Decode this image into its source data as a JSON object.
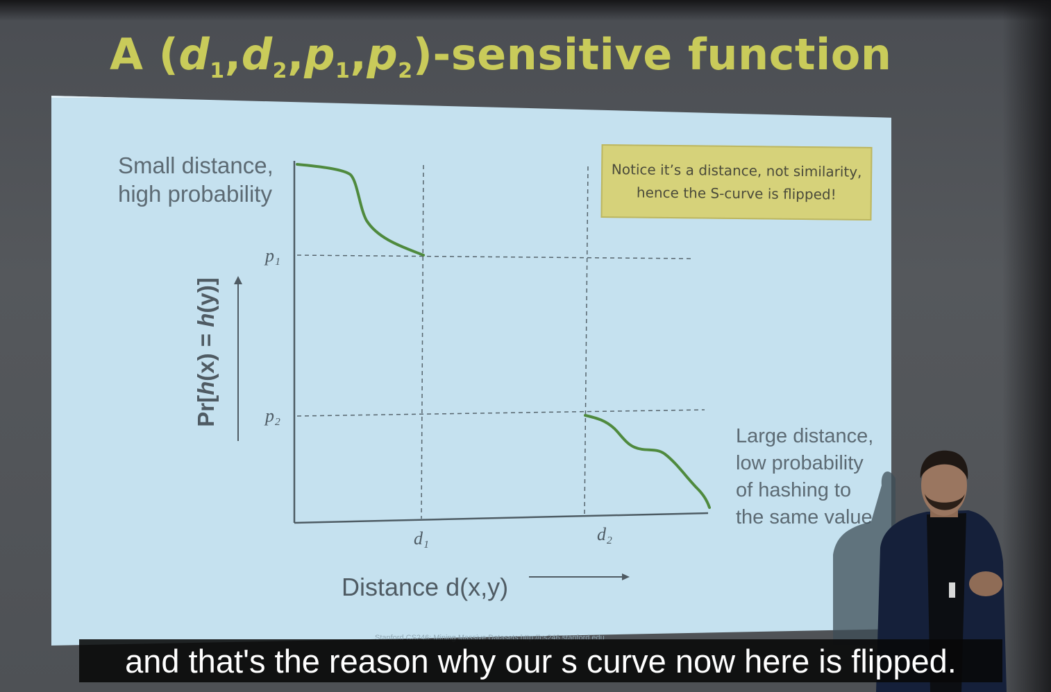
{
  "slide": {
    "title_prefix": "A (",
    "title_d1": "d",
    "title_sub1": "1",
    "title_comma1": ",",
    "title_d2": "d",
    "title_sub2": "2",
    "title_comma2": ",",
    "title_p1": "p",
    "title_sub3": "1",
    "title_comma3": ",",
    "title_p2": "p",
    "title_sub4": "2",
    "title_suffix": ")-sensitive function",
    "small_label_line1": "Small distance,",
    "small_label_line2": "high probability",
    "large_label_lines": [
      "Large distance,",
      "low probability",
      "of hashing to",
      "the same value"
    ],
    "p1_label": "p₁",
    "p2_label": "p₂",
    "d1_label": "d₁",
    "d2_label": "d₂",
    "ylabel_prefix": "Pr[",
    "ylabel_h1": "h",
    "ylabel_mid": "(x) = ",
    "ylabel_h2": "h",
    "ylabel_suffix": "(y)]",
    "xlabel": "Distance d(x,y)",
    "note_line1": "Notice it’s a distance, not similarity,",
    "note_line2": "hence the S-curve is flipped!",
    "footer": "Stanford CS246: Mining Massive Datasets  http://cs246.stanford.edu"
  },
  "caption": {
    "text": "and that's the reason why our s curve now here is flipped."
  },
  "colors": {
    "title": "#c9cb5a",
    "panel": "#c5e1ef",
    "curve": "#4f8a3e",
    "note_bg": "#d6d27a"
  }
}
